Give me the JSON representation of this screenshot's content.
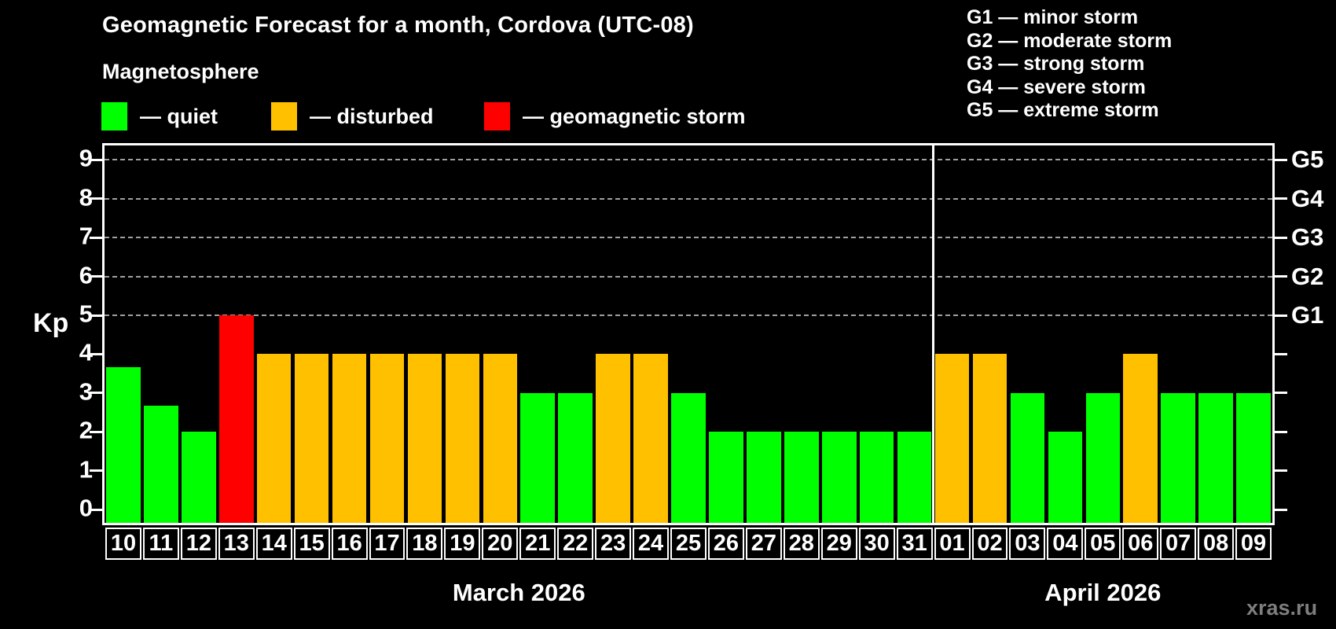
{
  "title": "Geomagnetic Forecast for a month, Cordova (UTC-08)",
  "subtitle": "Magnetosphere",
  "legend": {
    "items": [
      {
        "key": "quiet",
        "label": "— quiet",
        "color": "#00ff00"
      },
      {
        "key": "disturbed",
        "label": "— disturbed",
        "color": "#ffc000"
      },
      {
        "key": "storm",
        "label": "— geomagnetic storm",
        "color": "#ff0000"
      }
    ]
  },
  "g_legend": {
    "lines": [
      "G1 — minor storm",
      "G2 — moderate storm",
      "G3 — strong storm",
      "G4 — severe storm",
      "G5 — extreme storm"
    ]
  },
  "watermark": "xras.ru",
  "chart_data": {
    "type": "bar",
    "title": "Geomagnetic Forecast for a month, Cordova (UTC-08)",
    "ylabel": "Kp",
    "ylim": [
      0,
      9
    ],
    "yticks": [
      0,
      1,
      2,
      3,
      4,
      5,
      6,
      7,
      8,
      9
    ],
    "grid_levels": [
      5,
      6,
      7,
      8,
      9
    ],
    "grid_on": true,
    "legend_position": "top-left",
    "right_axis_labels": [
      {
        "level": 5,
        "text": "G1"
      },
      {
        "level": 6,
        "text": "G2"
      },
      {
        "level": 7,
        "text": "G3"
      },
      {
        "level": 8,
        "text": "G4"
      },
      {
        "level": 9,
        "text": "G5"
      }
    ],
    "status_colors": {
      "quiet": "#00ff00",
      "disturbed": "#ffc000",
      "storm": "#ff0000"
    },
    "months": [
      {
        "label": "March 2026",
        "days": [
          {
            "day": "10",
            "kp": 3.67,
            "status": "quiet"
          },
          {
            "day": "11",
            "kp": 2.67,
            "status": "quiet"
          },
          {
            "day": "12",
            "kp": 2,
            "status": "quiet"
          },
          {
            "day": "13",
            "kp": 5,
            "status": "storm"
          },
          {
            "day": "14",
            "kp": 4,
            "status": "disturbed"
          },
          {
            "day": "15",
            "kp": 4,
            "status": "disturbed"
          },
          {
            "day": "16",
            "kp": 4,
            "status": "disturbed"
          },
          {
            "day": "17",
            "kp": 4,
            "status": "disturbed"
          },
          {
            "day": "18",
            "kp": 4,
            "status": "disturbed"
          },
          {
            "day": "19",
            "kp": 4,
            "status": "disturbed"
          },
          {
            "day": "20",
            "kp": 4,
            "status": "disturbed"
          },
          {
            "day": "21",
            "kp": 3,
            "status": "quiet"
          },
          {
            "day": "22",
            "kp": 3,
            "status": "quiet"
          },
          {
            "day": "23",
            "kp": 4,
            "status": "disturbed"
          },
          {
            "day": "24",
            "kp": 4,
            "status": "disturbed"
          },
          {
            "day": "25",
            "kp": 3,
            "status": "quiet"
          },
          {
            "day": "26",
            "kp": 2,
            "status": "quiet"
          },
          {
            "day": "27",
            "kp": 2,
            "status": "quiet"
          },
          {
            "day": "28",
            "kp": 2,
            "status": "quiet"
          },
          {
            "day": "29",
            "kp": 2,
            "status": "quiet"
          },
          {
            "day": "30",
            "kp": 2,
            "status": "quiet"
          },
          {
            "day": "31",
            "kp": 2,
            "status": "quiet"
          }
        ]
      },
      {
        "label": "April 2026",
        "days": [
          {
            "day": "01",
            "kp": 4,
            "status": "disturbed"
          },
          {
            "day": "02",
            "kp": 4,
            "status": "disturbed"
          },
          {
            "day": "03",
            "kp": 3,
            "status": "quiet"
          },
          {
            "day": "04",
            "kp": 2,
            "status": "quiet"
          },
          {
            "day": "05",
            "kp": 3,
            "status": "quiet"
          },
          {
            "day": "06",
            "kp": 4,
            "status": "disturbed"
          },
          {
            "day": "07",
            "kp": 3,
            "status": "quiet"
          },
          {
            "day": "08",
            "kp": 3,
            "status": "quiet"
          },
          {
            "day": "09",
            "kp": 3,
            "status": "quiet"
          }
        ]
      }
    ]
  }
}
